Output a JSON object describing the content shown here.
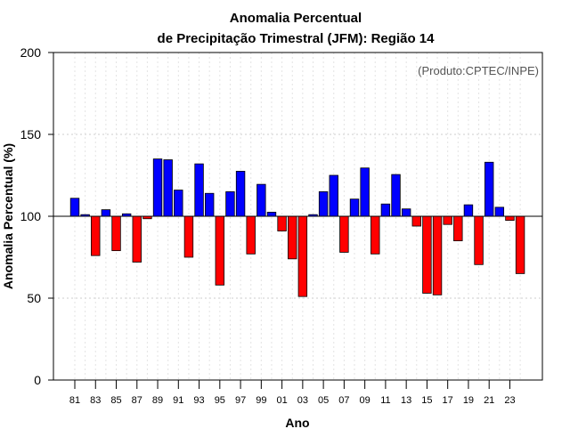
{
  "chart_data": {
    "type": "bar",
    "title_line1": "Anomalia Percentual",
    "title_line2": "de Precipitação Trimestral (JFM): Região 14",
    "xlabel": "Ano",
    "ylabel": "Anomalia Percentual (%)",
    "credit": "(Produto:CPTEC/INPE)",
    "ylim": [
      0,
      200
    ],
    "yticks": [
      0,
      50,
      100,
      150,
      200
    ],
    "baseline": 100,
    "grid": true,
    "colors": {
      "above": "#0000ff",
      "below": "#ff0000",
      "edge": "#000000",
      "grid": "#cccccc"
    },
    "categories": [
      "81",
      "82",
      "83",
      "84",
      "85",
      "86",
      "87",
      "88",
      "89",
      "90",
      "91",
      "92",
      "93",
      "94",
      "95",
      "96",
      "97",
      "98",
      "99",
      "00",
      "01",
      "02",
      "03",
      "04",
      "05",
      "06",
      "07",
      "08",
      "09",
      "10",
      "11",
      "12",
      "13",
      "14",
      "15",
      "16",
      "17",
      "18",
      "19",
      "20",
      "21",
      "22",
      "23",
      "24"
    ],
    "xtick_labels": [
      "81",
      "83",
      "85",
      "87",
      "89",
      "91",
      "93",
      "95",
      "97",
      "99",
      "01",
      "03",
      "05",
      "07",
      "09",
      "11",
      "13",
      "15",
      "17",
      "19",
      "21",
      "23"
    ],
    "values": [
      111,
      101,
      76,
      104,
      79,
      101.5,
      72,
      98.5,
      135,
      134.5,
      116,
      75,
      132,
      114,
      58,
      115,
      127.5,
      77,
      119.5,
      102.5,
      91,
      74,
      51,
      101,
      115,
      125,
      78,
      110.5,
      129.5,
      77,
      107.5,
      125.5,
      104.5,
      94,
      53,
      52,
      95,
      85,
      107,
      70.5,
      133,
      105.5,
      97.5,
      65
    ]
  }
}
